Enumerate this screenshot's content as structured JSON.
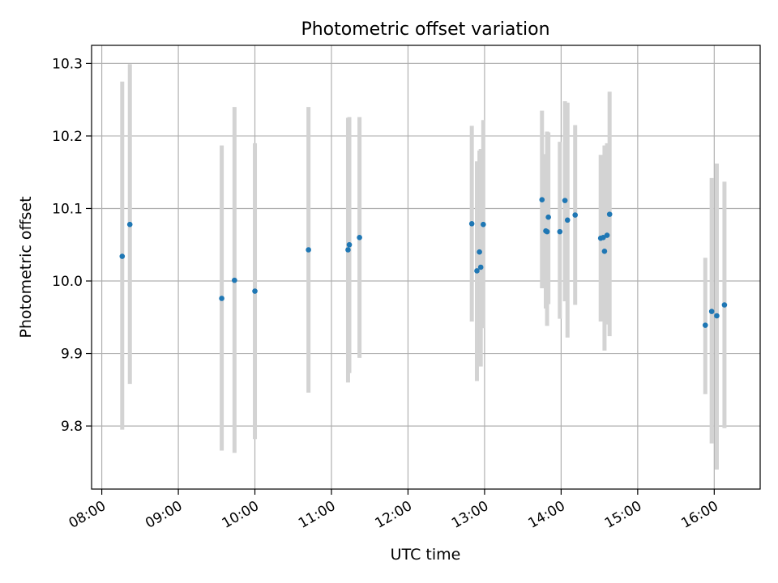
{
  "chart_data": {
    "type": "scatter",
    "title": "Photometric offset variation",
    "xlabel": "UTC time",
    "ylabel": "Photometric offset",
    "xlim": [
      "07:52",
      "16:36"
    ],
    "ylim": [
      9.713,
      10.325
    ],
    "x_ticks": [
      "08:00",
      "09:00",
      "10:00",
      "11:00",
      "12:00",
      "13:00",
      "14:00",
      "15:00",
      "16:00"
    ],
    "y_ticks": [
      "9.8",
      "9.9",
      "10.0",
      "10.1",
      "10.2",
      "10.3"
    ],
    "grid": true,
    "colors": {
      "points": "#1f77b4",
      "errorbars": "#d3d3d3",
      "grid": "#b0b0b0"
    },
    "points": [
      {
        "time": "08:16",
        "y": 10.034,
        "ylow": 9.795,
        "yhigh": 10.275
      },
      {
        "time": "08:22",
        "y": 10.078,
        "ylow": 9.858,
        "yhigh": 10.299
      },
      {
        "time": "09:34",
        "y": 9.976,
        "ylow": 9.766,
        "yhigh": 10.187
      },
      {
        "time": "09:44",
        "y": 10.001,
        "ylow": 9.763,
        "yhigh": 10.24
      },
      {
        "time": "10:00",
        "y": 9.986,
        "ylow": 9.782,
        "yhigh": 10.19
      },
      {
        "time": "10:42",
        "y": 10.043,
        "ylow": 9.846,
        "yhigh": 10.24
      },
      {
        "time": "11:13",
        "y": 10.043,
        "ylow": 9.86,
        "yhigh": 10.225
      },
      {
        "time": "11:14",
        "y": 10.05,
        "ylow": 9.873,
        "yhigh": 10.226
      },
      {
        "time": "11:22",
        "y": 10.06,
        "ylow": 9.894,
        "yhigh": 10.226
      },
      {
        "time": "12:50",
        "y": 10.079,
        "ylow": 9.944,
        "yhigh": 10.214
      },
      {
        "time": "12:54",
        "y": 10.014,
        "ylow": 9.862,
        "yhigh": 10.165
      },
      {
        "time": "12:56",
        "y": 10.04,
        "ylow": 9.9,
        "yhigh": 10.18
      },
      {
        "time": "12:57",
        "y": 10.019,
        "ylow": 9.882,
        "yhigh": 10.182
      },
      {
        "time": "12:59",
        "y": 10.078,
        "ylow": 9.935,
        "yhigh": 10.222
      },
      {
        "time": "13:45",
        "y": 10.112,
        "ylow": 9.99,
        "yhigh": 10.235
      },
      {
        "time": "13:48",
        "y": 10.069,
        "ylow": 9.962,
        "yhigh": 10.175
      },
      {
        "time": "13:49",
        "y": 10.068,
        "ylow": 9.938,
        "yhigh": 10.206
      },
      {
        "time": "13:50",
        "y": 10.088,
        "ylow": 9.968,
        "yhigh": 10.205
      },
      {
        "time": "13:59",
        "y": 10.068,
        "ylow": 9.948,
        "yhigh": 10.192
      },
      {
        "time": "14:03",
        "y": 10.111,
        "ylow": 9.972,
        "yhigh": 10.248
      },
      {
        "time": "14:05",
        "y": 10.084,
        "ylow": 9.922,
        "yhigh": 10.246
      },
      {
        "time": "14:11",
        "y": 10.091,
        "ylow": 9.967,
        "yhigh": 10.215
      },
      {
        "time": "14:31",
        "y": 10.059,
        "ylow": 9.944,
        "yhigh": 10.174
      },
      {
        "time": "14:33",
        "y": 10.06,
        "ylow": 9.954,
        "yhigh": 10.165
      },
      {
        "time": "14:34",
        "y": 10.041,
        "ylow": 9.904,
        "yhigh": 10.187
      },
      {
        "time": "14:36",
        "y": 10.063,
        "ylow": 9.94,
        "yhigh": 10.19
      },
      {
        "time": "14:38",
        "y": 10.092,
        "ylow": 9.924,
        "yhigh": 10.261
      },
      {
        "time": "15:53",
        "y": 9.939,
        "ylow": 9.844,
        "yhigh": 10.032
      },
      {
        "time": "15:58",
        "y": 9.958,
        "ylow": 9.776,
        "yhigh": 10.142
      },
      {
        "time": "16:02",
        "y": 9.952,
        "ylow": 9.74,
        "yhigh": 10.162
      },
      {
        "time": "16:08",
        "y": 9.967,
        "ylow": 9.797,
        "yhigh": 10.137
      }
    ]
  }
}
